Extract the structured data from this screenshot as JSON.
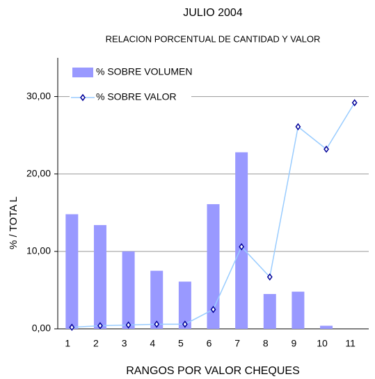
{
  "chart_data": {
    "type": "bar_line",
    "title": "JULIO  2004",
    "subtitle": "RELACION PORCENTUAL DE CANTIDAD Y VALOR",
    "x_label": "RANGOS POR VALOR CHEQUES",
    "y_label": "%   /   TOTA L",
    "categories": [
      "1",
      "2",
      "3",
      "4",
      "5",
      "6",
      "7",
      "8",
      "9",
      "10",
      "11"
    ],
    "series": [
      {
        "name": "% SOBRE VOLUMEN",
        "type": "bar",
        "color": "#9999ff",
        "values": [
          14.8,
          13.4,
          10.0,
          7.5,
          6.1,
          16.1,
          22.8,
          4.5,
          4.8,
          0.4,
          0
        ]
      },
      {
        "name": "% SOBRE VALOR",
        "type": "line",
        "color": "#99ccff",
        "marker_color": "#000099",
        "values": [
          0.2,
          0.4,
          0.5,
          0.6,
          0.6,
          2.5,
          10.6,
          6.7,
          26.1,
          23.2,
          29.2
        ]
      }
    ],
    "ylim": [
      0,
      35
    ],
    "yticks": [
      {
        "value": 0,
        "label": "0,00"
      },
      {
        "value": 10,
        "label": "10,00"
      },
      {
        "value": 20,
        "label": "20,00"
      },
      {
        "value": 30,
        "label": "30,00"
      }
    ],
    "grid": true,
    "legend": "top-left"
  }
}
